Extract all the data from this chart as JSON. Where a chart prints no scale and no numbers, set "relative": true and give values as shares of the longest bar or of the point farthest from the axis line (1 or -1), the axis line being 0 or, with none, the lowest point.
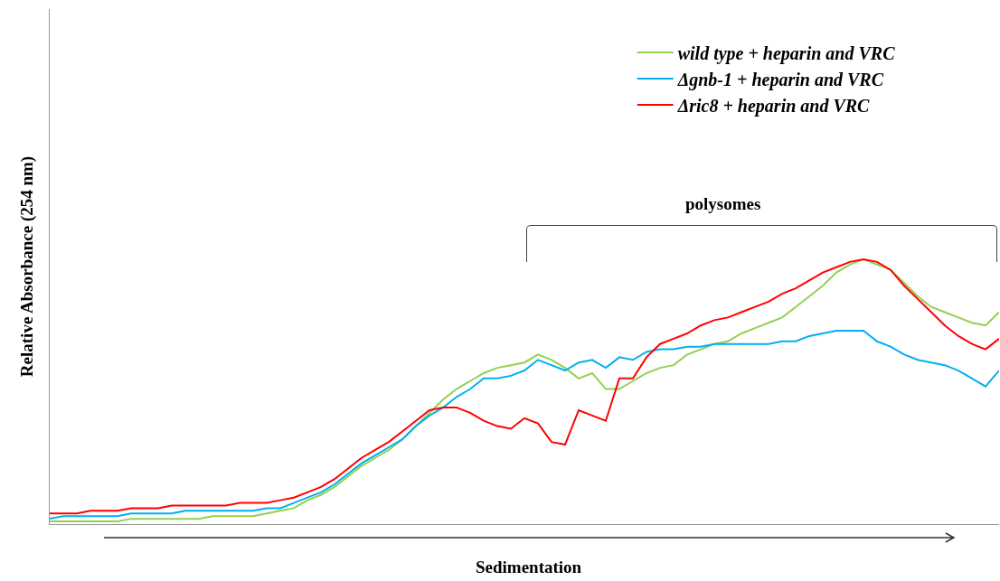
{
  "chart_data": {
    "type": "line",
    "relative": true,
    "xlabel": "Sedimentation",
    "ylabel": "Relative Absorbance (254 nm)",
    "legend": "top right",
    "grid": false,
    "annotations": [
      "polysomes"
    ],
    "categories": [
      null,
      null,
      null,
      null,
      null,
      null,
      null,
      null,
      null,
      null,
      null,
      null,
      null,
      null,
      null,
      null,
      null,
      null,
      null,
      null,
      null,
      null,
      null,
      null,
      null,
      null,
      null,
      null,
      null,
      null,
      null,
      null,
      null,
      null,
      null,
      null,
      null,
      null,
      null,
      null,
      null,
      null,
      null,
      null,
      null,
      null,
      null,
      null,
      null,
      null,
      null,
      null,
      null,
      null,
      null,
      null,
      null,
      null,
      null,
      null,
      null,
      null,
      null,
      null,
      null,
      null,
      null,
      null,
      null,
      null,
      null
    ],
    "series": [
      {
        "name": "wild type + heparin and VRC",
        "color": "#92d050",
        "values": [
          0.01,
          0.01,
          0.01,
          0.01,
          0.01,
          0.01,
          0.02,
          0.02,
          0.02,
          0.02,
          0.02,
          0.02,
          0.03,
          0.03,
          0.03,
          0.03,
          0.04,
          0.05,
          0.06,
          0.09,
          0.11,
          0.14,
          0.18,
          0.22,
          0.25,
          0.28,
          0.32,
          0.37,
          0.42,
          0.47,
          0.51,
          0.54,
          0.57,
          0.59,
          0.6,
          0.61,
          0.64,
          0.62,
          0.59,
          0.55,
          0.57,
          0.51,
          0.51,
          0.54,
          0.57,
          0.59,
          0.6,
          0.64,
          0.66,
          0.68,
          0.69,
          0.72,
          0.74,
          0.76,
          0.78,
          0.82,
          0.86,
          0.9,
          0.95,
          0.98,
          1,
          0.98,
          0.96,
          0.91,
          0.86,
          0.82,
          0.8,
          0.78,
          0.76,
          0.75,
          0.8
        ]
      },
      {
        "name": "Δgnb-1 + heparin and VRC",
        "color": "#00b0f0",
        "values": [
          0.02,
          0.03,
          0.03,
          0.03,
          0.03,
          0.03,
          0.04,
          0.04,
          0.04,
          0.04,
          0.05,
          0.05,
          0.05,
          0.05,
          0.05,
          0.05,
          0.06,
          0.06,
          0.08,
          0.1,
          0.12,
          0.15,
          0.19,
          0.23,
          0.26,
          0.29,
          0.32,
          0.37,
          0.41,
          0.44,
          0.48,
          0.51,
          0.55,
          0.55,
          0.56,
          0.58,
          0.62,
          0.6,
          0.58,
          0.61,
          0.62,
          0.59,
          0.63,
          0.62,
          0.65,
          0.66,
          0.66,
          0.67,
          0.67,
          0.68,
          0.68,
          0.68,
          0.68,
          0.68,
          0.69,
          0.69,
          0.71,
          0.72,
          0.73,
          0.73,
          0.73,
          0.69,
          0.67,
          0.64,
          0.62,
          0.61,
          0.6,
          0.58,
          0.55,
          0.52,
          0.58
        ]
      },
      {
        "name": "Δric8 + heparin and VRC",
        "color": "#ff0000",
        "values": [
          0.04,
          0.04,
          0.04,
          0.05,
          0.05,
          0.05,
          0.06,
          0.06,
          0.06,
          0.07,
          0.07,
          0.07,
          0.07,
          0.07,
          0.08,
          0.08,
          0.08,
          0.09,
          0.1,
          0.12,
          0.14,
          0.17,
          0.21,
          0.25,
          0.28,
          0.31,
          0.35,
          0.39,
          0.43,
          0.44,
          0.44,
          0.42,
          0.39,
          0.37,
          0.36,
          0.4,
          0.38,
          0.31,
          0.3,
          0.43,
          0.41,
          0.39,
          0.55,
          0.55,
          0.63,
          0.68,
          0.7,
          0.72,
          0.75,
          0.77,
          0.78,
          0.8,
          0.82,
          0.84,
          0.87,
          0.89,
          0.92,
          0.95,
          0.97,
          0.99,
          1,
          0.99,
          0.96,
          0.9,
          0.85,
          0.8,
          0.75,
          0.71,
          0.68,
          0.66,
          0.7
        ]
      }
    ]
  }
}
